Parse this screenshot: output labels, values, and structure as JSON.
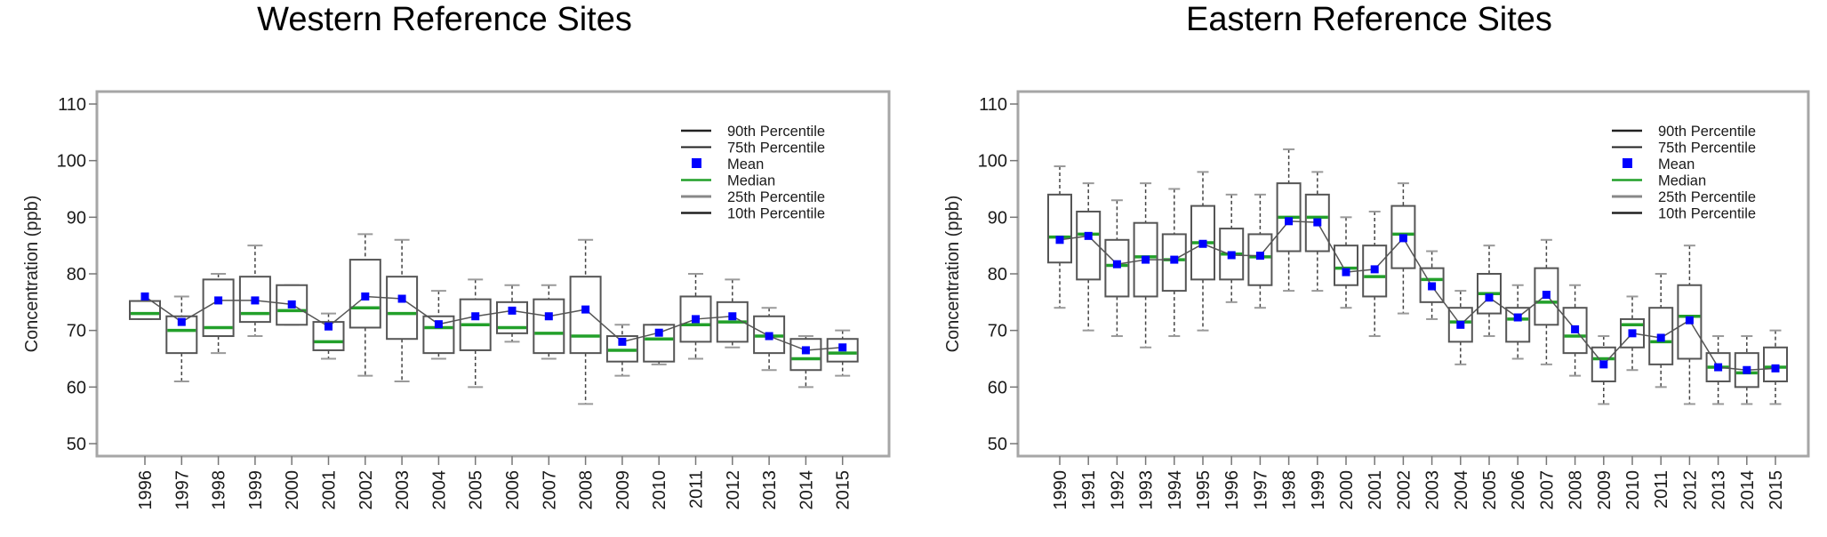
{
  "colors": {
    "frame": "#a6a6a6",
    "box": "#555555",
    "whisker": "#444444",
    "cap_light": "#9a9a9a",
    "median": "#22a02a",
    "mean": "#0000ff",
    "mean_line": "#555555",
    "axis_tick": "#777777"
  },
  "chart_data": [
    {
      "type": "box",
      "title": "Western Reference Sites",
      "xlabel": "",
      "ylabel": "Concentration (ppb)",
      "ylim": [
        50,
        110
      ],
      "yticks": [
        50,
        60,
        70,
        80,
        90,
        100,
        110
      ],
      "grid": false,
      "legend_position": "top-right",
      "legend": [
        "90th Percentile",
        "75th Percentile",
        "Mean",
        "Median",
        "25th Percentile",
        "10th Percentile"
      ],
      "categories": [
        "1996",
        "1997",
        "1998",
        "1999",
        "2000",
        "2001",
        "2002",
        "2003",
        "2004",
        "2005",
        "2006",
        "2007",
        "2008",
        "2009",
        "2010",
        "2011",
        "2012",
        "2013",
        "2014",
        "2015"
      ],
      "series": [
        {
          "name": "90th Percentile",
          "values": [
            75.2,
            76,
            80,
            85,
            78,
            73,
            87,
            86,
            77,
            79,
            78,
            78,
            86,
            71,
            71,
            80,
            79,
            74,
            69,
            70
          ]
        },
        {
          "name": "75th Percentile",
          "values": [
            75.2,
            72.5,
            79,
            79.5,
            78,
            71.5,
            82.5,
            79.5,
            72.5,
            75.5,
            75,
            75.5,
            79.5,
            69,
            71,
            76,
            75,
            72.5,
            68.5,
            68.5
          ]
        },
        {
          "name": "Mean",
          "values": [
            76,
            71.5,
            75.3,
            75.3,
            74.6,
            70.7,
            76,
            75.6,
            71.1,
            72.5,
            73.5,
            72.5,
            73.7,
            68,
            69.6,
            72,
            72.5,
            69,
            66.5,
            67
          ]
        },
        {
          "name": "Median",
          "values": [
            73,
            70,
            70.5,
            73,
            73.5,
            68,
            74,
            73,
            70.5,
            71,
            70.5,
            69.5,
            69,
            66.5,
            68.5,
            71,
            71.5,
            69,
            65,
            66
          ]
        },
        {
          "name": "25th Percentile",
          "values": [
            72,
            66,
            69,
            71.5,
            71,
            66.5,
            70.5,
            68.5,
            66,
            66.5,
            69.5,
            66,
            66,
            64.5,
            64.5,
            68,
            68,
            66,
            63,
            64.5
          ]
        },
        {
          "name": "10th Percentile",
          "values": [
            72,
            61,
            66,
            69,
            71,
            65,
            62,
            61,
            65,
            60,
            68,
            65,
            57,
            62,
            64,
            65,
            67,
            63,
            60,
            62
          ]
        }
      ]
    },
    {
      "type": "box",
      "title": "Eastern Reference Sites",
      "xlabel": "",
      "ylabel": "Concentration (ppb)",
      "ylim": [
        50,
        110
      ],
      "yticks": [
        50,
        60,
        70,
        80,
        90,
        100,
        110
      ],
      "grid": false,
      "legend_position": "top-right",
      "legend": [
        "90th Percentile",
        "75th Percentile",
        "Mean",
        "Median",
        "25th Percentile",
        "10th Percentile"
      ],
      "categories": [
        "1990",
        "1991",
        "1992",
        "1993",
        "1994",
        "1995",
        "1996",
        "1997",
        "1998",
        "1999",
        "2000",
        "2001",
        "2002",
        "2003",
        "2004",
        "2005",
        "2006",
        "2007",
        "2008",
        "2009",
        "2010",
        "2011",
        "2012",
        "2013",
        "2014",
        "2015"
      ],
      "series": [
        {
          "name": "90th Percentile",
          "values": [
            99,
            96,
            93,
            96,
            95,
            98,
            94,
            94,
            102,
            98,
            90,
            91,
            96,
            84,
            77,
            85,
            78,
            86,
            78,
            69,
            76,
            80,
            85,
            69,
            69,
            70
          ]
        },
        {
          "name": "75th Percentile",
          "values": [
            94,
            91,
            86,
            89,
            87,
            92,
            88,
            87,
            96,
            94,
            85,
            85,
            92,
            81,
            74,
            80,
            74,
            81,
            74,
            67,
            72,
            74,
            78,
            66,
            66,
            67
          ]
        },
        {
          "name": "Mean",
          "values": [
            86,
            86.7,
            81.7,
            82.5,
            82.5,
            85.3,
            83.3,
            83.2,
            89.3,
            89.1,
            80.3,
            80.8,
            86.3,
            77.8,
            71,
            75.8,
            72.3,
            76.3,
            70.2,
            64,
            69.5,
            68.7,
            71.8,
            63.5,
            63,
            63.3
          ]
        },
        {
          "name": "Median",
          "values": [
            86.5,
            87,
            81.5,
            83,
            82.5,
            85.5,
            83.5,
            83,
            90,
            90,
            81,
            79.5,
            87,
            79,
            71.5,
            76.5,
            72,
            75,
            69,
            65,
            71,
            68,
            72.5,
            63.5,
            62.5,
            63.5
          ]
        },
        {
          "name": "25th Percentile",
          "values": [
            82,
            79,
            76,
            76,
            77,
            79,
            79,
            78,
            84,
            84,
            78,
            76,
            81,
            75,
            68,
            73,
            68,
            71,
            66,
            61,
            67,
            64,
            65,
            61,
            60,
            61
          ]
        },
        {
          "name": "10th Percentile",
          "values": [
            74,
            70,
            69,
            67,
            69,
            70,
            75,
            74,
            77,
            77,
            74,
            69,
            73,
            72,
            64,
            69,
            65,
            64,
            62,
            57,
            63,
            60,
            57,
            57,
            57,
            57
          ]
        }
      ]
    }
  ]
}
